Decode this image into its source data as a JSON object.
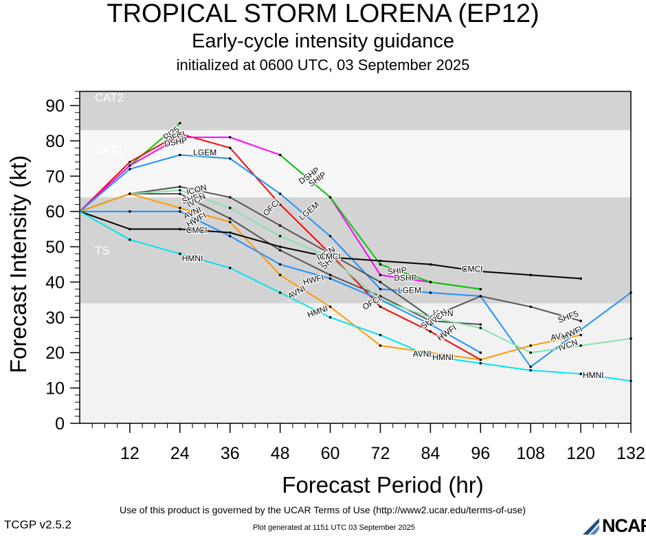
{
  "header": {
    "title": "TROPICAL STORM LORENA (EP12)",
    "subtitle": "Early-cycle intensity guidance",
    "initialized": "initialized at 0600 UTC, 03 September 2025"
  },
  "footer": {
    "terms": "Use of this product is governed by the UCAR Terms of Use (http://www2.ucar.edu/terms-of-use)",
    "version": "TCGP v2.5.2",
    "generated": "Plot generated at 1151 UTC   03 September 2025",
    "logo": "NCAR"
  },
  "chart_data": {
    "type": "line",
    "xlabel": "Forecast Period (hr)",
    "ylabel": "Forecast Intensity (kt)",
    "xlim": [
      0,
      132
    ],
    "ylim": [
      0,
      94
    ],
    "xticks": [
      12,
      24,
      36,
      48,
      60,
      72,
      84,
      96,
      108,
      120,
      132
    ],
    "yticks": [
      0,
      10,
      20,
      30,
      40,
      50,
      60,
      70,
      80,
      90
    ],
    "category_bands": [
      {
        "label": "TS",
        "from": 34,
        "to": 64,
        "color": "#d3d3d3"
      },
      {
        "label": "CAT1",
        "from": 64,
        "to": 83,
        "color": "#f7f7f7"
      },
      {
        "label": "CAT2",
        "from": 83,
        "to": 96,
        "color": "#d3d3d3"
      }
    ],
    "series": [
      {
        "name": "RI25",
        "color": "#00cc00",
        "x": [
          0,
          12,
          24
        ],
        "y": [
          60,
          73,
          85
        ],
        "labels": [
          {
            "x": 22,
            "y": 82,
            "angle": -35
          }
        ]
      },
      {
        "name": "OFCI",
        "color": "#ff0000",
        "x": [
          0,
          12,
          24,
          36,
          48,
          60,
          72,
          84,
          96
        ],
        "y": [
          60,
          74,
          82,
          78,
          62,
          48,
          33,
          26,
          18
        ],
        "labels": [
          {
            "x": 23,
            "y": 81,
            "angle": -20
          },
          {
            "x": 46,
            "y": 61,
            "angle": -45
          },
          {
            "x": 70,
            "y": 34,
            "angle": -30
          }
        ]
      },
      {
        "name": "DSHP",
        "color": "#ff00ff",
        "x": [
          0,
          12,
          24,
          36,
          48,
          60,
          72,
          84,
          96
        ],
        "y": [
          60,
          73,
          81,
          81,
          76,
          64,
          42,
          40,
          38
        ],
        "labels": [
          {
            "x": 23,
            "y": 79.5,
            "angle": -10
          },
          {
            "x": 55,
            "y": 70,
            "angle": -35
          },
          {
            "x": 78,
            "y": 41,
            "angle": 0
          }
        ]
      },
      {
        "name": "SHIP",
        "color": "#00cc00",
        "x": [
          48,
          60,
          72,
          84,
          96
        ],
        "y": [
          76,
          64,
          45,
          40,
          38
        ],
        "labels": [
          {
            "x": 57,
            "y": 69,
            "angle": -35
          },
          {
            "x": 76,
            "y": 43,
            "angle": -5
          }
        ]
      },
      {
        "name": "LGEM",
        "color": "#1e90ff",
        "x": [
          0,
          12,
          24,
          36,
          48,
          60,
          72,
          84,
          96,
          108,
          132
        ],
        "y": [
          60,
          72,
          76,
          75,
          65,
          53,
          38,
          37,
          36,
          16,
          37
        ],
        "labels": [
          {
            "x": 30,
            "y": 76.5,
            "angle": 0
          },
          {
            "x": 55,
            "y": 60,
            "angle": -40
          },
          {
            "x": 79,
            "y": 37.5,
            "angle": 0
          }
        ]
      },
      {
        "name": "ICON",
        "color": "#555555",
        "x": [
          0,
          12,
          24,
          36,
          48,
          60,
          72,
          84,
          96,
          108,
          120
        ],
        "y": [
          60,
          65,
          67,
          64,
          56,
          48,
          40,
          30,
          36,
          33,
          29
        ],
        "labels": [
          {
            "x": 28,
            "y": 66,
            "angle": -15
          },
          {
            "x": 59,
            "y": 47,
            "angle": -50
          },
          {
            "x": 87,
            "y": 31,
            "angle": 0
          }
        ]
      },
      {
        "name": "SHF5",
        "color": "#555555",
        "x": [
          0,
          12,
          24,
          36,
          48,
          60,
          72,
          84,
          96
        ],
        "y": [
          60,
          65,
          65,
          58,
          49,
          42,
          36,
          29,
          28
        ],
        "labels": [
          {
            "x": 27,
            "y": 63.5,
            "angle": -15
          },
          {
            "x": 60,
            "y": 46,
            "angle": -45
          },
          {
            "x": 84,
            "y": 29,
            "angle": -40
          },
          {
            "x": 117,
            "y": 30,
            "angle": -20
          }
        ]
      },
      {
        "name": "IVCN",
        "color": "#88e0b0",
        "x": [
          0,
          12,
          24,
          36,
          48,
          60,
          72,
          84,
          96,
          108,
          120,
          132
        ],
        "y": [
          60,
          65,
          66,
          61,
          53,
          47,
          35,
          30,
          27,
          20,
          22,
          24
        ],
        "labels": [
          {
            "x": 28,
            "y": 63,
            "angle": -30
          },
          {
            "x": 59,
            "y": 48,
            "angle": -30
          },
          {
            "x": 86,
            "y": 30,
            "angle": -40
          },
          {
            "x": 117,
            "y": 22,
            "angle": -20
          }
        ]
      },
      {
        "name": "AVNI",
        "color": "#ff9900",
        "x": [
          0,
          12,
          24,
          36,
          48,
          60,
          72,
          84,
          96,
          108,
          120
        ],
        "y": [
          60,
          65,
          61,
          57,
          42,
          33,
          22,
          20,
          18,
          22,
          25
        ],
        "labels": [
          {
            "x": 27,
            "y": 59.5,
            "angle": -25
          },
          {
            "x": 52,
            "y": 37,
            "angle": -30
          },
          {
            "x": 82,
            "y": 19.5,
            "angle": 0
          },
          {
            "x": 115,
            "y": 24.5,
            "angle": -10
          }
        ]
      },
      {
        "name": "HWFI",
        "color": "#1e90ff",
        "x": [
          0,
          12,
          24,
          36,
          48,
          60,
          72,
          84,
          96
        ],
        "y": [
          60,
          60,
          60,
          53,
          45,
          41,
          35,
          28,
          20
        ],
        "labels": [
          {
            "x": 28,
            "y": 57.5,
            "angle": -30
          },
          {
            "x": 56,
            "y": 40.5,
            "angle": -15
          },
          {
            "x": 88,
            "y": 25.5,
            "angle": -35
          },
          {
            "x": 118,
            "y": 25.5,
            "angle": -25
          }
        ]
      },
      {
        "name": "CMCI",
        "color": "#000000",
        "x": [
          0,
          12,
          24,
          36,
          48,
          60,
          72,
          84,
          96,
          108,
          120
        ],
        "y": [
          60,
          55,
          55,
          54,
          50,
          47,
          46,
          45,
          43,
          42,
          41
        ],
        "labels": [
          {
            "x": 28,
            "y": 54.5,
            "angle": 0
          },
          {
            "x": 60,
            "y": 47,
            "angle": 0
          },
          {
            "x": 94,
            "y": 43.5,
            "angle": 0
          }
        ]
      },
      {
        "name": "HMNI",
        "color": "#00e5ee",
        "x": [
          0,
          12,
          24,
          36,
          48,
          60,
          72,
          84,
          96,
          108,
          120,
          132
        ],
        "y": [
          60,
          52,
          48,
          44,
          37,
          30,
          25,
          19,
          17,
          15,
          14,
          12
        ],
        "labels": [
          {
            "x": 27,
            "y": 46.5,
            "angle": 0
          },
          {
            "x": 57,
            "y": 31.5,
            "angle": -20
          },
          {
            "x": 87,
            "y": 18.5,
            "angle": 0
          },
          {
            "x": 123,
            "y": 13.5,
            "angle": 0
          }
        ]
      }
    ]
  }
}
